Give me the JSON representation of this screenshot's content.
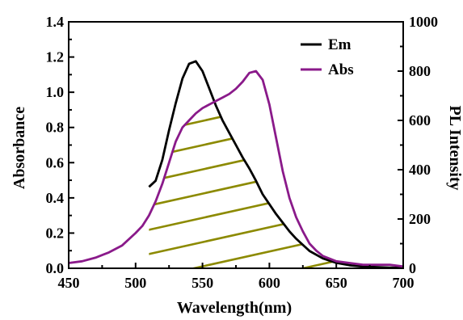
{
  "chart_data": {
    "type": "line",
    "xlabel": "Wavelength(nm)",
    "ylabel": "Absorbance",
    "y2label": "PL Intensity",
    "xlim": [
      450,
      700
    ],
    "ylim": [
      0,
      1.4
    ],
    "y2lim": [
      0,
      1000
    ],
    "x_ticks": [
      "450",
      "500",
      "550",
      "600",
      "650",
      "700"
    ],
    "y_ticks": [
      "0.0",
      "0.2",
      "0.4",
      "0.6",
      "0.8",
      "1.0",
      "1.2",
      "1.4"
    ],
    "y2_ticks": [
      "0",
      "200",
      "400",
      "600",
      "800",
      "1000"
    ],
    "legend_position": "top-right",
    "series": [
      {
        "name": "Em",
        "axis": "y2",
        "color": "#000000",
        "x": [
          510,
          515,
          520,
          525,
          530,
          535,
          540,
          545,
          550,
          555,
          560,
          565,
          570,
          575,
          580,
          585,
          590,
          595,
          600,
          605,
          610,
          615,
          620,
          625,
          630,
          640,
          650,
          660,
          670,
          680,
          690,
          700
        ],
        "y": [
          330,
          355,
          440,
          560,
          670,
          770,
          830,
          840,
          800,
          730,
          660,
          600,
          550,
          500,
          450,
          405,
          355,
          300,
          260,
          220,
          185,
          150,
          120,
          95,
          70,
          40,
          22,
          12,
          7,
          5,
          3,
          2
        ]
      },
      {
        "name": "Abs",
        "axis": "y",
        "color": "#8a1a8a",
        "x": [
          450,
          460,
          470,
          480,
          490,
          500,
          505,
          510,
          515,
          520,
          525,
          530,
          535,
          540,
          545,
          550,
          555,
          560,
          565,
          570,
          575,
          580,
          585,
          590,
          595,
          600,
          605,
          610,
          615,
          620,
          625,
          630,
          635,
          640,
          650,
          660,
          670,
          680,
          690,
          700
        ],
        "y": [
          0.03,
          0.04,
          0.06,
          0.09,
          0.13,
          0.2,
          0.24,
          0.3,
          0.38,
          0.48,
          0.6,
          0.72,
          0.8,
          0.84,
          0.88,
          0.91,
          0.93,
          0.95,
          0.97,
          0.99,
          1.02,
          1.06,
          1.11,
          1.12,
          1.07,
          0.93,
          0.74,
          0.55,
          0.4,
          0.29,
          0.21,
          0.14,
          0.1,
          0.07,
          0.04,
          0.03,
          0.02,
          0.02,
          0.02,
          0.01
        ]
      }
    ],
    "overlap_hatch_color": "#8c8a00"
  }
}
